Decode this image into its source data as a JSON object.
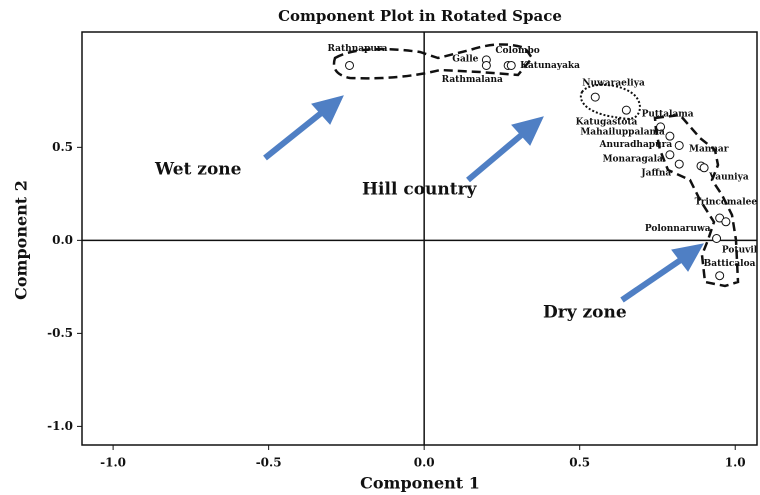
{
  "chart_data": {
    "type": "scatter",
    "title": "Component Plot in Rotated Space",
    "x_label": "Component 1",
    "y_label": "Component 2",
    "xlim": [
      -1.1,
      1.07
    ],
    "ylim": [
      -1.1,
      1.12
    ],
    "xticks": [
      {
        "value": -1,
        "label": "-1.0"
      },
      {
        "value": -0.5,
        "label": "-0.5"
      },
      {
        "value": 0,
        "label": "0.0"
      },
      {
        "value": 0.5,
        "label": "0.5"
      },
      {
        "value": 1,
        "label": "1.0"
      }
    ],
    "yticks": [
      {
        "value": -1,
        "label": "-1.0"
      },
      {
        "value": -0.5,
        "label": "-0.5"
      },
      {
        "value": 0,
        "label": "0.0"
      },
      {
        "value": 0.5,
        "label": "0.5"
      }
    ],
    "point_labels": [
      "Rathnapura",
      "Galle",
      "Colombo",
      "Katunayaka",
      "Rathmalana",
      "Nuwaraeliya",
      "Katugastota",
      "Puttalama",
      "Mahailuppalama",
      "Anuradhapura",
      "Mannar",
      "Monaragala",
      "Jaffna",
      "Vauniya",
      "Trincomalee",
      "Polonnaruwa",
      "Potuvil",
      "Batticaloa"
    ],
    "x": [
      -0.24,
      0.2,
      0.2,
      0.27,
      0.28,
      0.55,
      0.65,
      0.76,
      0.79,
      0.82,
      0.89,
      0.79,
      0.82,
      0.9,
      0.95,
      0.94,
      0.97,
      0.95
    ],
    "values": [
      0.94,
      0.97,
      0.94,
      0.94,
      0.94,
      0.77,
      0.7,
      0.61,
      0.56,
      0.51,
      0.4,
      0.46,
      0.41,
      0.39,
      0.12,
      0.01,
      0.1,
      -0.19
    ],
    "color": "#ffffff",
    "annotations": [
      "Wet zone",
      "Hill country",
      "Dry zone"
    ]
  }
}
